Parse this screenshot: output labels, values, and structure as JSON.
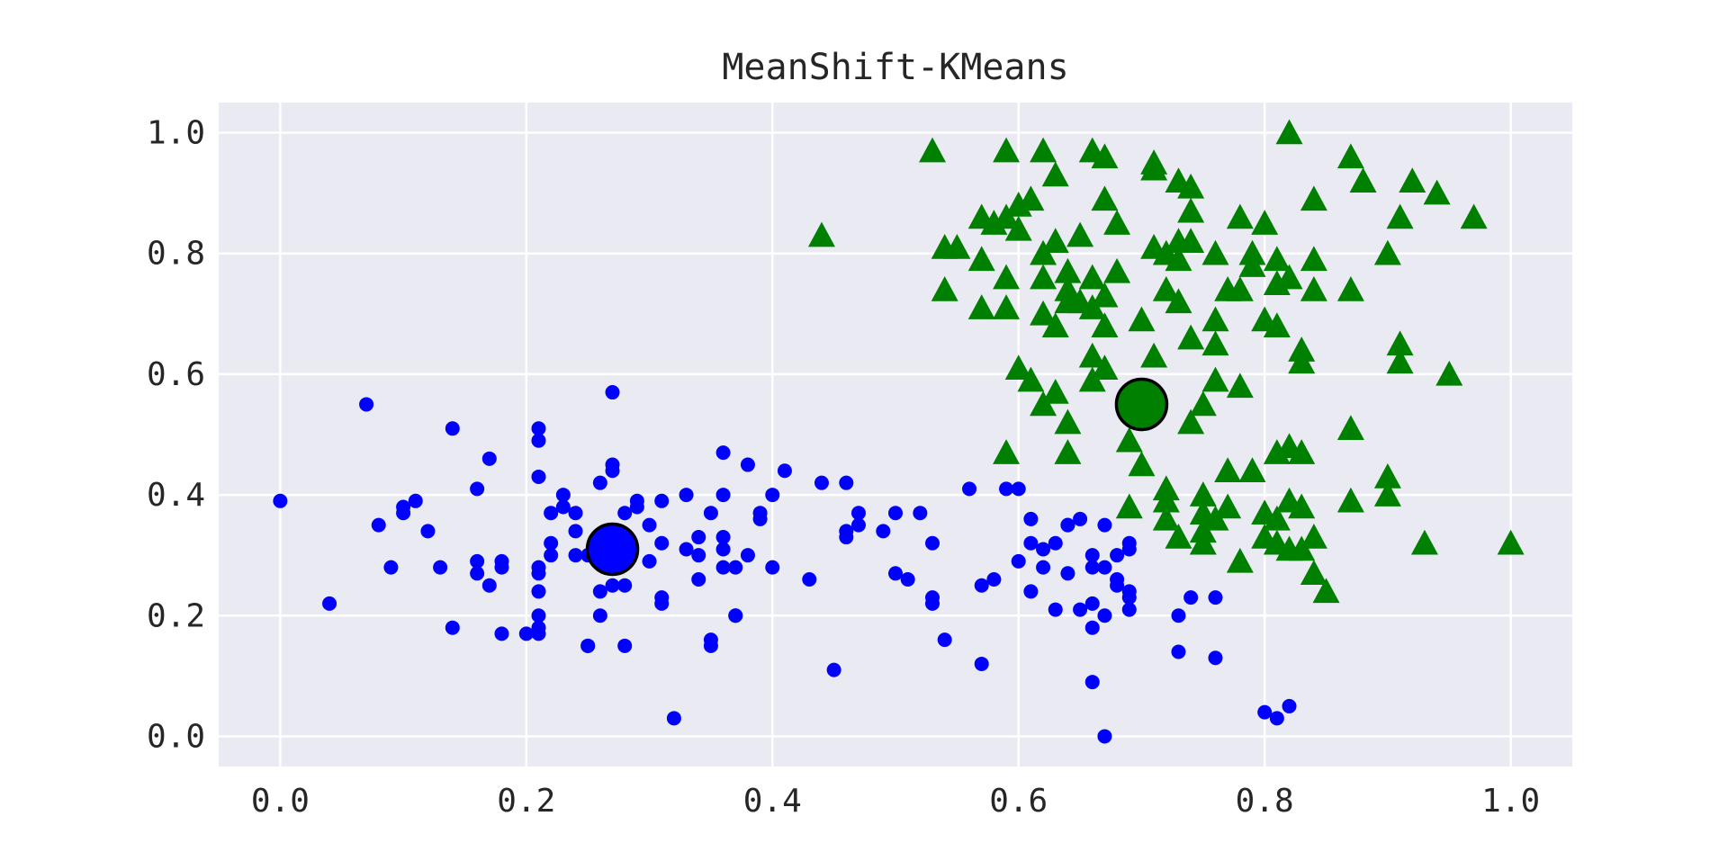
{
  "chart_data": {
    "type": "scatter",
    "title": "MeanShift-KMeans",
    "xlabel": "",
    "ylabel": "",
    "xlim": [
      -0.05,
      1.05
    ],
    "ylim": [
      -0.05,
      1.05
    ],
    "xticks": [
      0.0,
      0.2,
      0.4,
      0.6,
      0.8,
      1.0
    ],
    "yticks": [
      0.0,
      0.2,
      0.4,
      0.6,
      0.8,
      1.0
    ],
    "xtick_labels": [
      "0.0",
      "0.2",
      "0.4",
      "0.6",
      "0.8",
      "1.0"
    ],
    "ytick_labels": [
      "0.0",
      "0.2",
      "0.4",
      "0.6",
      "0.8",
      "1.0"
    ],
    "grid": true,
    "background": "#eaeaf2",
    "series": [
      {
        "marker": "circle",
        "color": "#0000ff",
        "points": [
          [
            0.0,
            0.39
          ],
          [
            0.04,
            0.22
          ],
          [
            0.07,
            0.55
          ],
          [
            0.08,
            0.35
          ],
          [
            0.09,
            0.28
          ],
          [
            0.1,
            0.38
          ],
          [
            0.1,
            0.37
          ],
          [
            0.11,
            0.39
          ],
          [
            0.12,
            0.34
          ],
          [
            0.13,
            0.28
          ],
          [
            0.14,
            0.18
          ],
          [
            0.14,
            0.51
          ],
          [
            0.16,
            0.41
          ],
          [
            0.16,
            0.29
          ],
          [
            0.16,
            0.27
          ],
          [
            0.17,
            0.25
          ],
          [
            0.17,
            0.46
          ],
          [
            0.18,
            0.17
          ],
          [
            0.18,
            0.29
          ],
          [
            0.18,
            0.28
          ],
          [
            0.2,
            0.17
          ],
          [
            0.21,
            0.17
          ],
          [
            0.21,
            0.18
          ],
          [
            0.21,
            0.24
          ],
          [
            0.21,
            0.2
          ],
          [
            0.21,
            0.43
          ],
          [
            0.21,
            0.51
          ],
          [
            0.21,
            0.49
          ],
          [
            0.21,
            0.28
          ],
          [
            0.21,
            0.27
          ],
          [
            0.22,
            0.3
          ],
          [
            0.22,
            0.32
          ],
          [
            0.22,
            0.37
          ],
          [
            0.23,
            0.4
          ],
          [
            0.23,
            0.38
          ],
          [
            0.24,
            0.37
          ],
          [
            0.24,
            0.34
          ],
          [
            0.24,
            0.3
          ],
          [
            0.25,
            0.3
          ],
          [
            0.25,
            0.15
          ],
          [
            0.25,
            0.15
          ],
          [
            0.26,
            0.24
          ],
          [
            0.26,
            0.2
          ],
          [
            0.26,
            0.42
          ],
          [
            0.27,
            0.57
          ],
          [
            0.27,
            0.45
          ],
          [
            0.27,
            0.44
          ],
          [
            0.27,
            0.25
          ],
          [
            0.28,
            0.37
          ],
          [
            0.28,
            0.25
          ],
          [
            0.28,
            0.15
          ],
          [
            0.29,
            0.38
          ],
          [
            0.29,
            0.39
          ],
          [
            0.3,
            0.35
          ],
          [
            0.3,
            0.29
          ],
          [
            0.31,
            0.39
          ],
          [
            0.31,
            0.32
          ],
          [
            0.31,
            0.23
          ],
          [
            0.31,
            0.22
          ],
          [
            0.32,
            0.03
          ],
          [
            0.33,
            0.4
          ],
          [
            0.33,
            0.31
          ],
          [
            0.34,
            0.33
          ],
          [
            0.34,
            0.26
          ],
          [
            0.34,
            0.3
          ],
          [
            0.35,
            0.37
          ],
          [
            0.35,
            0.16
          ],
          [
            0.35,
            0.15
          ],
          [
            0.36,
            0.47
          ],
          [
            0.36,
            0.4
          ],
          [
            0.36,
            0.33
          ],
          [
            0.36,
            0.31
          ],
          [
            0.36,
            0.28
          ],
          [
            0.37,
            0.2
          ],
          [
            0.37,
            0.2
          ],
          [
            0.37,
            0.28
          ],
          [
            0.38,
            0.3
          ],
          [
            0.38,
            0.45
          ],
          [
            0.39,
            0.36
          ],
          [
            0.39,
            0.37
          ],
          [
            0.4,
            0.28
          ],
          [
            0.4,
            0.4
          ],
          [
            0.41,
            0.44
          ],
          [
            0.43,
            0.26
          ],
          [
            0.44,
            0.42
          ],
          [
            0.45,
            0.11
          ],
          [
            0.46,
            0.42
          ],
          [
            0.46,
            0.34
          ],
          [
            0.46,
            0.33
          ],
          [
            0.47,
            0.35
          ],
          [
            0.47,
            0.37
          ],
          [
            0.49,
            0.34
          ],
          [
            0.5,
            0.37
          ],
          [
            0.5,
            0.27
          ],
          [
            0.51,
            0.26
          ],
          [
            0.52,
            0.37
          ],
          [
            0.53,
            0.32
          ],
          [
            0.53,
            0.23
          ],
          [
            0.53,
            0.22
          ],
          [
            0.54,
            0.16
          ],
          [
            0.56,
            0.41
          ],
          [
            0.57,
            0.12
          ],
          [
            0.57,
            0.25
          ],
          [
            0.58,
            0.26
          ],
          [
            0.59,
            0.41
          ],
          [
            0.6,
            0.41
          ],
          [
            0.6,
            0.29
          ],
          [
            0.61,
            0.36
          ],
          [
            0.61,
            0.32
          ],
          [
            0.61,
            0.24
          ],
          [
            0.62,
            0.31
          ],
          [
            0.62,
            0.28
          ],
          [
            0.63,
            0.21
          ],
          [
            0.63,
            0.32
          ],
          [
            0.64,
            0.35
          ],
          [
            0.64,
            0.35
          ],
          [
            0.64,
            0.27
          ],
          [
            0.65,
            0.21
          ],
          [
            0.65,
            0.36
          ],
          [
            0.66,
            0.28
          ],
          [
            0.66,
            0.22
          ],
          [
            0.66,
            0.18
          ],
          [
            0.66,
            0.09
          ],
          [
            0.66,
            0.3
          ],
          [
            0.67,
            0.35
          ],
          [
            0.67,
            0.28
          ],
          [
            0.67,
            0.2
          ],
          [
            0.67,
            0.0
          ],
          [
            0.68,
            0.26
          ],
          [
            0.68,
            0.3
          ],
          [
            0.68,
            0.25
          ],
          [
            0.69,
            0.31
          ],
          [
            0.69,
            0.23
          ],
          [
            0.69,
            0.21
          ],
          [
            0.69,
            0.32
          ],
          [
            0.69,
            0.24
          ],
          [
            0.73,
            0.2
          ],
          [
            0.73,
            0.14
          ],
          [
            0.74,
            0.23
          ],
          [
            0.76,
            0.13
          ],
          [
            0.76,
            0.23
          ],
          [
            0.8,
            0.04
          ],
          [
            0.81,
            0.03
          ],
          [
            0.82,
            0.05
          ]
        ]
      },
      {
        "marker": "triangle",
        "color": "#008000",
        "points": [
          [
            0.44,
            0.83
          ],
          [
            0.53,
            0.97
          ],
          [
            0.54,
            0.81
          ],
          [
            0.54,
            0.74
          ],
          [
            0.55,
            0.81
          ],
          [
            0.57,
            0.71
          ],
          [
            0.57,
            0.79
          ],
          [
            0.57,
            0.86
          ],
          [
            0.58,
            0.85
          ],
          [
            0.59,
            0.97
          ],
          [
            0.59,
            0.86
          ],
          [
            0.59,
            0.76
          ],
          [
            0.59,
            0.71
          ],
          [
            0.59,
            0.47
          ],
          [
            0.6,
            0.88
          ],
          [
            0.6,
            0.84
          ],
          [
            0.6,
            0.61
          ],
          [
            0.61,
            0.59
          ],
          [
            0.61,
            0.89
          ],
          [
            0.62,
            0.97
          ],
          [
            0.62,
            0.8
          ],
          [
            0.62,
            0.76
          ],
          [
            0.62,
            0.7
          ],
          [
            0.62,
            0.55
          ],
          [
            0.63,
            0.82
          ],
          [
            0.63,
            0.68
          ],
          [
            0.63,
            0.57
          ],
          [
            0.63,
            0.93
          ],
          [
            0.64,
            0.77
          ],
          [
            0.64,
            0.74
          ],
          [
            0.64,
            0.72
          ],
          [
            0.64,
            0.52
          ],
          [
            0.64,
            0.47
          ],
          [
            0.65,
            0.83
          ],
          [
            0.65,
            0.72
          ],
          [
            0.66,
            0.97
          ],
          [
            0.66,
            0.76
          ],
          [
            0.66,
            0.71
          ],
          [
            0.66,
            0.63
          ],
          [
            0.66,
            0.59
          ],
          [
            0.67,
            0.96
          ],
          [
            0.67,
            0.89
          ],
          [
            0.67,
            0.73
          ],
          [
            0.67,
            0.68
          ],
          [
            0.67,
            0.61
          ],
          [
            0.68,
            0.77
          ],
          [
            0.68,
            0.85
          ],
          [
            0.69,
            0.49
          ],
          [
            0.69,
            0.38
          ],
          [
            0.7,
            0.69
          ],
          [
            0.7,
            0.45
          ],
          [
            0.71,
            0.81
          ],
          [
            0.71,
            0.95
          ],
          [
            0.71,
            0.63
          ],
          [
            0.71,
            0.94
          ],
          [
            0.72,
            0.74
          ],
          [
            0.72,
            0.41
          ],
          [
            0.72,
            0.39
          ],
          [
            0.72,
            0.8
          ],
          [
            0.72,
            0.36
          ],
          [
            0.73,
            0.92
          ],
          [
            0.73,
            0.82
          ],
          [
            0.73,
            0.79
          ],
          [
            0.73,
            0.72
          ],
          [
            0.73,
            0.33
          ],
          [
            0.74,
            0.87
          ],
          [
            0.74,
            0.66
          ],
          [
            0.74,
            0.52
          ],
          [
            0.74,
            0.82
          ],
          [
            0.74,
            0.91
          ],
          [
            0.75,
            0.55
          ],
          [
            0.75,
            0.4
          ],
          [
            0.75,
            0.37
          ],
          [
            0.75,
            0.34
          ],
          [
            0.75,
            0.32
          ],
          [
            0.76,
            0.69
          ],
          [
            0.76,
            0.65
          ],
          [
            0.76,
            0.8
          ],
          [
            0.76,
            0.36
          ],
          [
            0.76,
            0.59
          ],
          [
            0.77,
            0.74
          ],
          [
            0.77,
            0.44
          ],
          [
            0.77,
            0.38
          ],
          [
            0.78,
            0.86
          ],
          [
            0.78,
            0.74
          ],
          [
            0.78,
            0.29
          ],
          [
            0.78,
            0.58
          ],
          [
            0.79,
            0.78
          ],
          [
            0.79,
            0.8
          ],
          [
            0.79,
            0.44
          ],
          [
            0.8,
            0.85
          ],
          [
            0.8,
            0.37
          ],
          [
            0.8,
            0.33
          ],
          [
            0.8,
            0.69
          ],
          [
            0.81,
            0.68
          ],
          [
            0.81,
            0.47
          ],
          [
            0.81,
            0.79
          ],
          [
            0.81,
            0.75
          ],
          [
            0.81,
            0.36
          ],
          [
            0.81,
            0.32
          ],
          [
            0.82,
            1.0
          ],
          [
            0.82,
            0.76
          ],
          [
            0.82,
            0.48
          ],
          [
            0.82,
            0.39
          ],
          [
            0.82,
            0.31
          ],
          [
            0.83,
            0.64
          ],
          [
            0.83,
            0.62
          ],
          [
            0.83,
            0.47
          ],
          [
            0.83,
            0.38
          ],
          [
            0.83,
            0.31
          ],
          [
            0.84,
            0.89
          ],
          [
            0.84,
            0.79
          ],
          [
            0.84,
            0.74
          ],
          [
            0.84,
            0.33
          ],
          [
            0.84,
            0.27
          ],
          [
            0.85,
            0.24
          ],
          [
            0.87,
            0.96
          ],
          [
            0.87,
            0.74
          ],
          [
            0.87,
            0.51
          ],
          [
            0.87,
            0.39
          ],
          [
            0.88,
            0.92
          ],
          [
            0.9,
            0.8
          ],
          [
            0.9,
            0.43
          ],
          [
            0.9,
            0.4
          ],
          [
            0.91,
            0.86
          ],
          [
            0.91,
            0.65
          ],
          [
            0.91,
            0.62
          ],
          [
            0.92,
            0.92
          ],
          [
            0.93,
            0.32
          ],
          [
            0.94,
            0.9
          ],
          [
            0.95,
            0.6
          ],
          [
            0.97,
            0.86
          ],
          [
            1.0,
            0.32
          ]
        ]
      }
    ],
    "centroids": [
      {
        "x": 0.27,
        "y": 0.31,
        "color": "#0000ff"
      },
      {
        "x": 0.7,
        "y": 0.55,
        "color": "#008000"
      }
    ]
  }
}
